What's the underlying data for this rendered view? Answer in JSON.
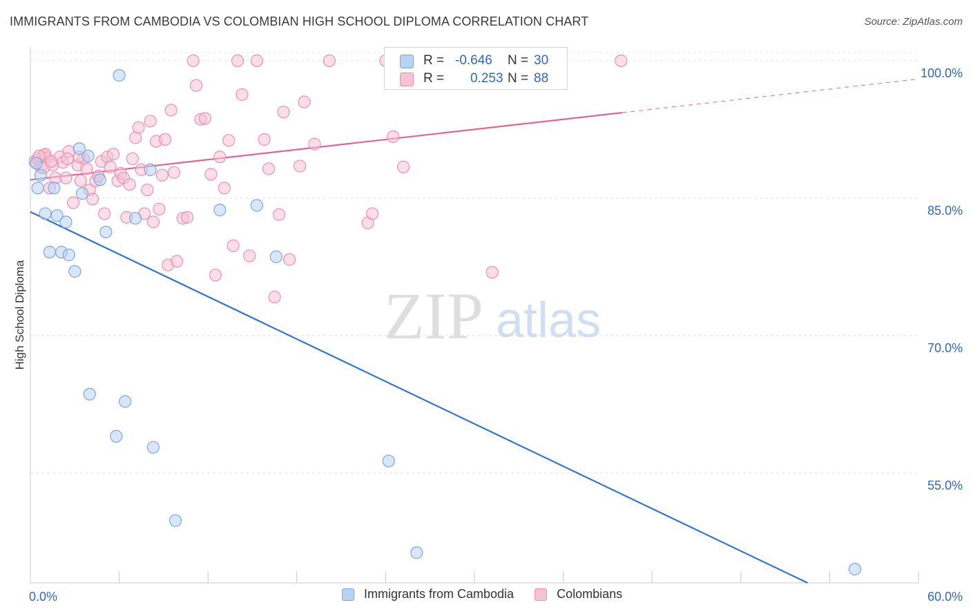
{
  "title": "IMMIGRANTS FROM CAMBODIA VS COLOMBIAN HIGH SCHOOL DIPLOMA CORRELATION CHART",
  "source": "Source: ZipAtlas.com",
  "watermark": {
    "zip": "ZIP",
    "atlas": "atlas"
  },
  "colors": {
    "blue_fill": "#b8d2f3",
    "blue_stroke": "#7aa6e3",
    "blue_line": "#2f74d0",
    "pink_fill": "#f7c3d3",
    "pink_stroke": "#eb8fb0",
    "pink_line": "#e3648f",
    "accent_text": "#2f66c6",
    "grid": "#e4e4e4"
  },
  "stats": {
    "rows": [
      {
        "r_label": "R =",
        "r_value": "-0.646",
        "n_label": "N =",
        "n_value": "30"
      },
      {
        "r_label": "R =",
        "r_value": "0.253",
        "n_label": "N =",
        "n_value": "88"
      }
    ]
  },
  "legend": {
    "items": [
      "Immigrants from Cambodia",
      "Colombians"
    ]
  },
  "chart_data": {
    "type": "scatter",
    "xlabel": "",
    "ylabel": "High School Diploma",
    "xlim": [
      0,
      60
    ],
    "ylim": [
      43,
      101.5
    ],
    "x_tick_labels": [
      "0.0%",
      "60.0%"
    ],
    "y_ticks": [
      55,
      70,
      85,
      100
    ],
    "y_tick_labels": [
      "55.0%",
      "70.0%",
      "85.0%",
      "100.0%"
    ],
    "grid": true,
    "series": [
      {
        "name": "Immigrants from Cambodia",
        "color": "#b8d2f3",
        "points": [
          [
            0.4,
            88.8
          ],
          [
            0.5,
            86.1
          ],
          [
            0.7,
            87.5
          ],
          [
            1.0,
            83.3
          ],
          [
            1.3,
            79.1
          ],
          [
            1.6,
            86.1
          ],
          [
            1.8,
            83.1
          ],
          [
            2.1,
            79.1
          ],
          [
            2.4,
            82.4
          ],
          [
            2.6,
            78.8
          ],
          [
            3.0,
            77.0
          ],
          [
            3.3,
            90.4
          ],
          [
            3.5,
            85.5
          ],
          [
            3.9,
            89.6
          ],
          [
            4.0,
            63.6
          ],
          [
            4.7,
            87.0
          ],
          [
            5.1,
            81.3
          ],
          [
            5.8,
            59.0
          ],
          [
            6.0,
            98.4
          ],
          [
            6.4,
            62.8
          ],
          [
            7.1,
            82.8
          ],
          [
            8.1,
            88.1
          ],
          [
            8.3,
            57.8
          ],
          [
            9.8,
            49.8
          ],
          [
            12.8,
            83.7
          ],
          [
            15.3,
            84.2
          ],
          [
            16.6,
            78.6
          ],
          [
            24.2,
            56.3
          ],
          [
            26.1,
            46.3
          ],
          [
            55.7,
            44.5
          ]
        ],
        "trend": {
          "x0": 0,
          "y0": 83.5,
          "x1": 52.5,
          "y1": 43
        }
      },
      {
        "name": "Colombians",
        "color": "#f7c3d3",
        "points": [
          [
            0.3,
            89.0
          ],
          [
            0.5,
            89.3
          ],
          [
            0.7,
            88.4
          ],
          [
            0.9,
            89.7
          ],
          [
            1.1,
            89.4
          ],
          [
            1.3,
            86.1
          ],
          [
            1.5,
            88.6
          ],
          [
            1.7,
            87.2
          ],
          [
            2.0,
            89.5
          ],
          [
            2.2,
            88.9
          ],
          [
            2.4,
            87.2
          ],
          [
            2.6,
            90.1
          ],
          [
            2.9,
            84.5
          ],
          [
            3.2,
            88.6
          ],
          [
            3.4,
            86.9
          ],
          [
            3.6,
            89.3
          ],
          [
            3.8,
            88.2
          ],
          [
            4.0,
            85.9
          ],
          [
            4.2,
            84.9
          ],
          [
            4.4,
            86.9
          ],
          [
            4.6,
            87.4
          ],
          [
            4.8,
            89.0
          ],
          [
            5.0,
            83.3
          ],
          [
            5.2,
            89.5
          ],
          [
            5.4,
            88.4
          ],
          [
            5.6,
            89.8
          ],
          [
            5.9,
            86.9
          ],
          [
            6.1,
            87.7
          ],
          [
            6.3,
            87.2
          ],
          [
            6.5,
            82.9
          ],
          [
            6.7,
            86.5
          ],
          [
            6.9,
            89.3
          ],
          [
            7.1,
            91.6
          ],
          [
            7.3,
            92.7
          ],
          [
            7.5,
            88.1
          ],
          [
            7.7,
            83.3
          ],
          [
            7.9,
            85.9
          ],
          [
            8.1,
            93.4
          ],
          [
            8.3,
            82.4
          ],
          [
            8.5,
            91.2
          ],
          [
            8.7,
            83.8
          ],
          [
            8.9,
            87.5
          ],
          [
            9.1,
            91.4
          ],
          [
            9.3,
            77.7
          ],
          [
            9.5,
            94.6
          ],
          [
            9.7,
            87.8
          ],
          [
            9.9,
            78.1
          ],
          [
            10.3,
            82.8
          ],
          [
            10.6,
            82.9
          ],
          [
            11.0,
            100.0
          ],
          [
            11.2,
            97.3
          ],
          [
            11.5,
            93.6
          ],
          [
            11.8,
            93.7
          ],
          [
            12.2,
            87.6
          ],
          [
            12.5,
            76.6
          ],
          [
            12.8,
            89.5
          ],
          [
            13.1,
            86.1
          ],
          [
            13.4,
            91.3
          ],
          [
            13.7,
            79.8
          ],
          [
            14.0,
            100.0
          ],
          [
            14.3,
            96.3
          ],
          [
            14.8,
            78.7
          ],
          [
            15.3,
            100.0
          ],
          [
            15.8,
            91.4
          ],
          [
            16.1,
            88.2
          ],
          [
            16.5,
            74.2
          ],
          [
            16.8,
            83.2
          ],
          [
            17.1,
            94.4
          ],
          [
            17.5,
            78.3
          ],
          [
            18.2,
            88.5
          ],
          [
            18.5,
            95.5
          ],
          [
            19.2,
            90.9
          ],
          [
            20.2,
            100.0
          ],
          [
            22.8,
            82.3
          ],
          [
            23.1,
            83.3
          ],
          [
            24.0,
            100.0
          ],
          [
            24.5,
            91.7
          ],
          [
            25.2,
            88.4
          ],
          [
            26.3,
            100.0
          ],
          [
            28.0,
            100.0
          ],
          [
            31.2,
            76.9
          ],
          [
            39.9,
            100.0
          ],
          [
            1.0,
            89.8
          ],
          [
            2.5,
            89.3
          ],
          [
            3.3,
            89.5
          ],
          [
            0.9,
            88.3
          ],
          [
            1.4,
            89.0
          ],
          [
            0.6,
            89.6
          ]
        ],
        "trend": {
          "x0": 0,
          "y0": 87.0,
          "x1": 60,
          "y1": 98.0,
          "solid_until_x": 40
        }
      }
    ]
  }
}
